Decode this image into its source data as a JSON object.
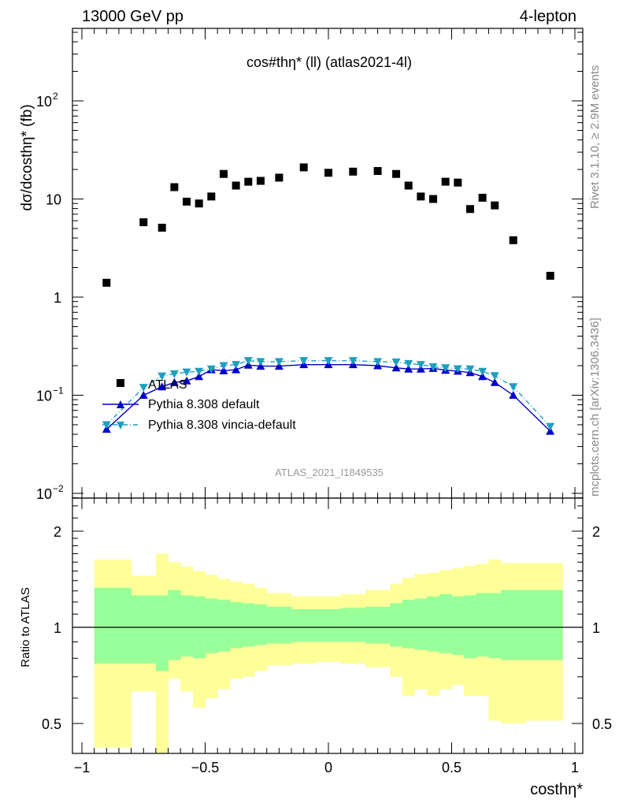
{
  "header": {
    "left": "13000 GeV pp",
    "right": "4-lepton"
  },
  "side_labels": {
    "rivet": "Rivet 3.1.10, ≥ 2.9M events",
    "mcplots": "mcplots.cern.ch [arXiv:1306.3436]"
  },
  "chart_data": {
    "type": "scatter",
    "title": "cos#thη* (ll) (atlas2021-4l)",
    "analysis_label": "ATLAS_2021_I1849535",
    "xlabel": "costhη*",
    "ylabel": "dσ/dcosthη* (fb)",
    "ratio_ylabel": "Ratio to ATLAS",
    "x_ticks": [
      "−1",
      "−0.5",
      "0",
      "0.5",
      "1"
    ],
    "y_ticks": [
      "10^−2",
      "10^−1",
      "1",
      "10",
      "10^2"
    ],
    "ratio_ticks": [
      "0.5",
      "1",
      "2"
    ],
    "xlim": [
      -1,
      1
    ],
    "ylim": [
      0.008,
      500
    ],
    "yscale": "log",
    "ratio_ylim": [
      0.45,
      2.4
    ],
    "legend_position": "lower-left",
    "series": [
      {
        "name": "ATLAS",
        "style": "square",
        "color": "#000000",
        "x": [
          -0.9,
          -0.75,
          -0.675,
          -0.625,
          -0.575,
          -0.525,
          -0.475,
          -0.425,
          -0.375,
          -0.325,
          -0.275,
          -0.2,
          -0.1,
          0,
          0.1,
          0.2,
          0.275,
          0.325,
          0.375,
          0.425,
          0.475,
          0.525,
          0.575,
          0.625,
          0.675,
          0.75,
          0.9
        ],
        "y": [
          1.4,
          5.8,
          5.1,
          13.2,
          9.4,
          9.0,
          10.6,
          18.0,
          13.7,
          15.0,
          15.3,
          16.5,
          21.0,
          18.5,
          19.0,
          19.3,
          18.0,
          13.7,
          10.6,
          10.0,
          15.0,
          14.7,
          7.9,
          10.3,
          8.6,
          3.8,
          1.65
        ]
      },
      {
        "name": "Pythia 8.308 default",
        "style": "triangle-up",
        "color": "#0000cc",
        "line": "solid",
        "x": [
          -0.9,
          -0.75,
          -0.675,
          -0.625,
          -0.575,
          -0.525,
          -0.475,
          -0.425,
          -0.375,
          -0.325,
          -0.275,
          -0.2,
          -0.1,
          0,
          0.1,
          0.2,
          0.275,
          0.325,
          0.375,
          0.425,
          0.475,
          0.525,
          0.575,
          0.625,
          0.675,
          0.75,
          0.9
        ],
        "y": [
          0.045,
          0.1,
          0.122,
          0.135,
          0.14,
          0.155,
          0.182,
          0.178,
          0.182,
          0.203,
          0.198,
          0.198,
          0.205,
          0.205,
          0.205,
          0.2,
          0.19,
          0.185,
          0.185,
          0.188,
          0.18,
          0.176,
          0.17,
          0.155,
          0.135,
          0.1,
          0.043
        ]
      },
      {
        "name": "Pythia 8.308 vincia-default",
        "style": "triangle-down",
        "color": "#1f9fbf",
        "line": "dashdot",
        "x": [
          -0.9,
          -0.75,
          -0.675,
          -0.625,
          -0.575,
          -0.525,
          -0.475,
          -0.425,
          -0.375,
          -0.325,
          -0.275,
          -0.2,
          -0.1,
          0,
          0.1,
          0.2,
          0.275,
          0.325,
          0.375,
          0.425,
          0.475,
          0.525,
          0.575,
          0.625,
          0.675,
          0.75,
          0.9
        ],
        "y": [
          0.05,
          0.12,
          0.157,
          0.165,
          0.172,
          0.175,
          0.185,
          0.2,
          0.205,
          0.225,
          0.22,
          0.22,
          0.225,
          0.225,
          0.225,
          0.22,
          0.218,
          0.21,
          0.205,
          0.195,
          0.19,
          0.186,
          0.185,
          0.175,
          0.158,
          0.122,
          0.048
        ]
      }
    ],
    "ratio_bands": {
      "bins": [
        [
          -0.95,
          -0.85
        ],
        [
          -0.85,
          -0.8
        ],
        [
          -0.8,
          -0.7
        ],
        [
          -0.7,
          -0.65
        ],
        [
          -0.65,
          -0.6
        ],
        [
          -0.6,
          -0.55
        ],
        [
          -0.55,
          -0.5
        ],
        [
          -0.5,
          -0.45
        ],
        [
          -0.45,
          -0.4
        ],
        [
          -0.4,
          -0.35
        ],
        [
          -0.35,
          -0.3
        ],
        [
          -0.3,
          -0.25
        ],
        [
          -0.25,
          -0.15
        ],
        [
          -0.15,
          -0.05
        ],
        [
          -0.05,
          0.05
        ],
        [
          0.05,
          0.15
        ],
        [
          0.15,
          0.25
        ],
        [
          0.25,
          0.3
        ],
        [
          0.3,
          0.35
        ],
        [
          0.35,
          0.4
        ],
        [
          0.4,
          0.45
        ],
        [
          0.45,
          0.5
        ],
        [
          0.5,
          0.55
        ],
        [
          0.55,
          0.6
        ],
        [
          0.6,
          0.65
        ],
        [
          0.65,
          0.7
        ],
        [
          0.7,
          0.8
        ],
        [
          0.8,
          0.95
        ]
      ],
      "green_low": [
        0.77,
        0.77,
        0.77,
        0.73,
        0.79,
        0.81,
        0.8,
        0.83,
        0.84,
        0.86,
        0.87,
        0.88,
        0.89,
        0.9,
        0.9,
        0.9,
        0.89,
        0.87,
        0.86,
        0.85,
        0.84,
        0.83,
        0.82,
        0.8,
        0.81,
        0.8,
        0.79,
        0.79
      ],
      "green_high": [
        1.33,
        1.33,
        1.26,
        1.26,
        1.31,
        1.26,
        1.25,
        1.23,
        1.22,
        1.2,
        1.19,
        1.18,
        1.16,
        1.14,
        1.14,
        1.15,
        1.16,
        1.19,
        1.22,
        1.23,
        1.25,
        1.27,
        1.25,
        1.26,
        1.28,
        1.28,
        1.31,
        1.31
      ],
      "yellow_low": [
        0.42,
        0.42,
        0.63,
        0.27,
        0.69,
        0.63,
        0.56,
        0.6,
        0.64,
        0.69,
        0.7,
        0.73,
        0.76,
        0.77,
        0.78,
        0.77,
        0.75,
        0.7,
        0.61,
        0.64,
        0.61,
        0.64,
        0.66,
        0.61,
        0.61,
        0.51,
        0.5,
        0.51
      ],
      "yellow_high": [
        1.63,
        1.63,
        1.45,
        1.7,
        1.6,
        1.55,
        1.5,
        1.46,
        1.42,
        1.39,
        1.37,
        1.33,
        1.28,
        1.25,
        1.25,
        1.27,
        1.31,
        1.37,
        1.43,
        1.47,
        1.48,
        1.51,
        1.53,
        1.56,
        1.58,
        1.63,
        1.59,
        1.59
      ]
    }
  }
}
